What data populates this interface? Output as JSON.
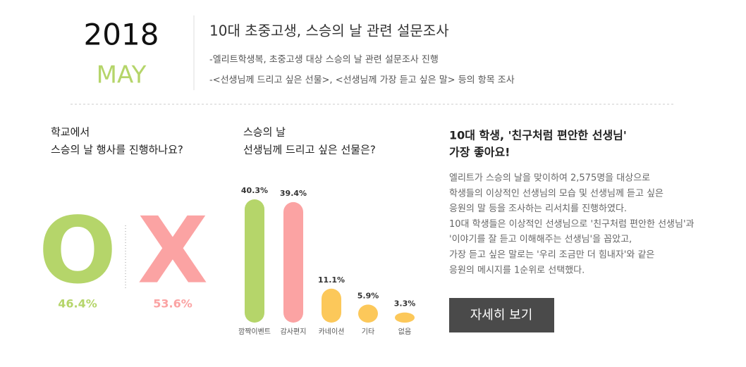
{
  "header": {
    "year": "2018",
    "month": "MAY",
    "title": "10대 초중고생, 스승의 날 관련 설문조사",
    "bullets": [
      "-엘리트학생복, 초중고생 대상 스승의 날 관련 설문조사 진행",
      "-<선생님께 드리고 싶은 선물>, <선생님께 가장 듣고 싶은 말> 등의 항목 조사"
    ]
  },
  "chart_data": [
    {
      "type": "pictogram",
      "title": [
        "학교에서",
        "스승의 날 행사를 진행하나요?"
      ],
      "categories": [
        "O",
        "X"
      ],
      "values": [
        46.4,
        53.6
      ],
      "value_labels": [
        "46.4%",
        "53.6%"
      ],
      "colors": [
        "#b5d56a",
        "#fba3a3"
      ]
    },
    {
      "type": "bar",
      "title": [
        "스승의 날",
        "선생님께 드리고 싶은 선물은?"
      ],
      "categories": [
        "깜짝이벤트",
        "감사편지",
        "카네이션",
        "기타",
        "없음"
      ],
      "values": [
        40.3,
        39.4,
        11.1,
        5.9,
        3.3
      ],
      "value_labels": [
        "40.3%",
        "39.4%",
        "11.1%",
        "5.9%",
        "3.3%"
      ],
      "colors": [
        "#b5d56a",
        "#fba3a3",
        "#fcc85a",
        "#fcc85a",
        "#fcc85a"
      ]
    }
  ],
  "article": {
    "title": [
      "10대 학생, '친구처럼 편안한 선생님'",
      "가장 좋아요!"
    ],
    "body": [
      "엘리트가 스승의 날을 맞이하여 2,575명을 대상으로",
      "학생들의 이상적인 선생님의 모습 및 선생님께 듣고 싶은",
      "응원의 말 등을 조사하는 리서치를 진행하였다.",
      "10대 학생들은 이상적인 선생님으로 '친구처럼 편안한 선생님'과",
      "'이야기를 잘 듣고 이해해주는 선생님'을 꼽았고,",
      "가장 듣고 싶은 말로는 '우리 조금만 더 힘내자'와 같은",
      "응원의 메시지를 1순위로 선택했다."
    ],
    "button": "자세히 보기"
  }
}
